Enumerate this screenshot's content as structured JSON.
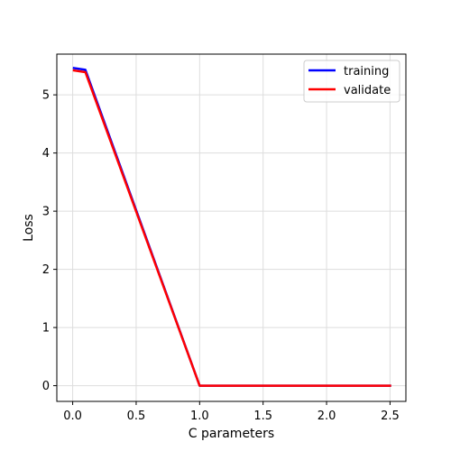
{
  "chart_data": {
    "type": "line",
    "title": "",
    "xlabel": "C parameters",
    "ylabel": "Loss",
    "xlim": [
      -0.125,
      2.625
    ],
    "ylim": [
      -0.27,
      5.7
    ],
    "xticks": [
      0.0,
      0.5,
      1.0,
      1.5,
      2.0,
      2.5
    ],
    "yticks": [
      0,
      1,
      2,
      3,
      4,
      5
    ],
    "xtick_labels": [
      "0.0",
      "0.5",
      "1.0",
      "1.5",
      "2.0",
      "2.5"
    ],
    "ytick_labels": [
      "0",
      "1",
      "2",
      "3",
      "4",
      "5"
    ],
    "grid": true,
    "legend_position": "top-right",
    "x": [
      0.01,
      0.1,
      1.0,
      2.5
    ],
    "series": [
      {
        "name": "training",
        "color": "#0000ff",
        "values": [
          5.46,
          5.43,
          0.0,
          0.0
        ]
      },
      {
        "name": "validate",
        "color": "#ff0000",
        "values": [
          5.42,
          5.39,
          0.0,
          0.0
        ]
      }
    ]
  }
}
